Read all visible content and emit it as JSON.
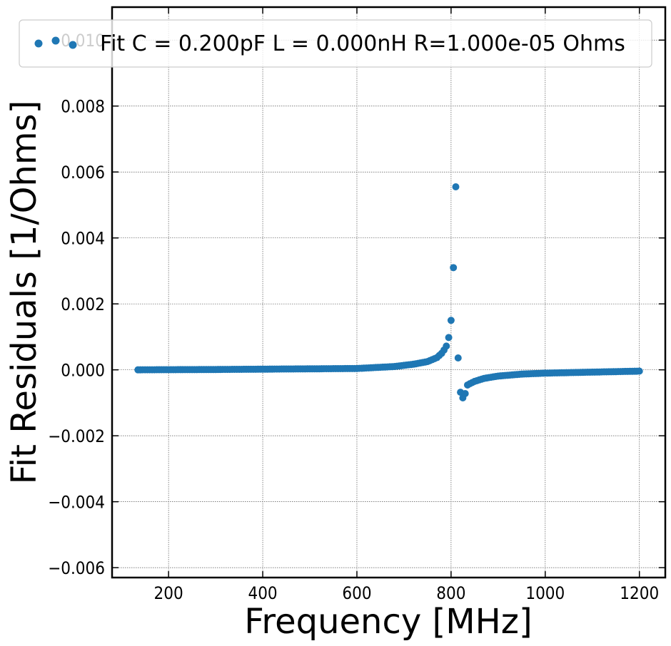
{
  "chart_data": {
    "type": "scatter",
    "title": "",
    "xlabel": "Frequency [MHz]",
    "ylabel": "Fit Residuals [1/Ohms]",
    "xlim": [
      80,
      1255
    ],
    "ylim": [
      -0.0063,
      0.011
    ],
    "xticks": [
      200,
      400,
      600,
      800,
      1000,
      1200
    ],
    "xtick_labels": [
      "200",
      "400",
      "600",
      "800",
      "1000",
      "1200"
    ],
    "yticks": [
      -0.006,
      -0.004,
      -0.002,
      0.0,
      0.002,
      0.004,
      0.006,
      0.008,
      0.01
    ],
    "ytick_labels": [
      "−0.006",
      "−0.004",
      "−0.002",
      "0.000",
      "0.002",
      "0.004",
      "0.006",
      "0.008",
      "0.010"
    ],
    "grid": true,
    "legend_position": "top-right",
    "series": [
      {
        "name": "Fit C = 0.200pF L = 0.000nH R=1.000e-05 Ohms",
        "color": "#1f77b4",
        "marker": "circle",
        "x_start": 135,
        "x_end": 1200,
        "x_step": 5,
        "y_background": {
          "description": "smooth residual between anchor points (x MHz, y 1/Ohms)",
          "anchors": [
            [
              135,
              0.0
            ],
            [
              300,
              1e-05
            ],
            [
              500,
              3e-05
            ],
            [
              600,
              4e-05
            ],
            [
              680,
              0.0001
            ],
            [
              720,
              0.00017
            ],
            [
              750,
              0.00025
            ],
            [
              770,
              0.00037
            ],
            [
              780,
              0.0005
            ],
            [
              785,
              0.0006
            ],
            [
              825,
              -0.0006
            ],
            [
              830,
              -0.0005
            ],
            [
              840,
              -0.00042
            ],
            [
              850,
              -0.00035
            ],
            [
              870,
              -0.00026
            ],
            [
              900,
              -0.00019
            ],
            [
              950,
              -0.00013
            ],
            [
              1000,
              -0.0001
            ],
            [
              1100,
              -7e-05
            ],
            [
              1200,
              -4e-05
            ]
          ]
        },
        "points_override": [
          [
            790,
            0.00072
          ],
          [
            795,
            0.00098
          ],
          [
            800,
            0.0015
          ],
          [
            805,
            0.0031
          ],
          [
            810,
            0.00555
          ],
          [
            815,
            0.00036
          ],
          [
            820,
            -0.00068
          ],
          [
            825,
            -0.00085
          ],
          [
            830,
            -0.00072
          ]
        ]
      }
    ]
  }
}
